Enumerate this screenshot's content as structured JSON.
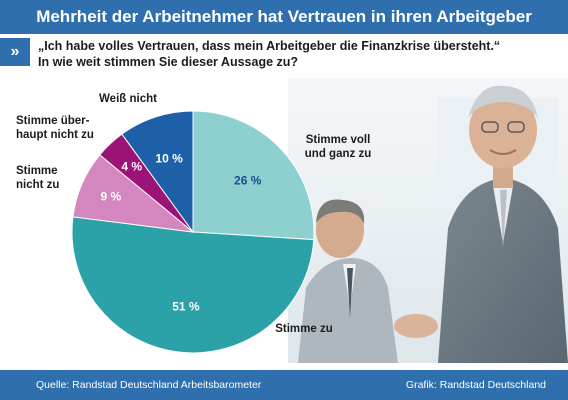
{
  "header": {
    "title": "Mehrheit der Arbeitnehmer hat Vertrauen in ihren Arbeitgeber"
  },
  "question": {
    "marker": "»",
    "line1": "„Ich habe volles Vertrauen, dass mein Arbeitgeber die Finanzkrise übersteht.“",
    "line2": "In wie weit stimmen Sie dieser Aussage zu?"
  },
  "footer": {
    "source": "Quelle: Randstad Deutschland Arbeitsbarometer",
    "credit": "Grafik: Randstad Deutschland"
  },
  "chart_data": {
    "type": "pie",
    "slices": [
      {
        "category": "Stimme voll und ganz zu",
        "value": 26,
        "label": "26 %",
        "color": "#8ecfcf",
        "label_color": "#1a4f8a"
      },
      {
        "category": "Stimme zu",
        "value": 51,
        "label": "51 %",
        "color": "#2aa2a8",
        "label_color": "#ffffff"
      },
      {
        "category": "Stimme nicht zu",
        "value": 9,
        "label": "9 %",
        "color": "#d486bf",
        "label_color": "#ffffff"
      },
      {
        "category": "Stimme überhaupt nicht zu",
        "value": 4,
        "label": "4 %",
        "color": "#9c1378",
        "label_color": "#ffffff"
      },
      {
        "category": "Weiß nicht",
        "value": 10,
        "label": "10 %",
        "color": "#1e60a8",
        "label_color": "#ffffff"
      }
    ],
    "category_labels": [
      {
        "lines": [
          "Stimme voll",
          "und ganz zu"
        ]
      },
      {
        "lines": [
          "Stimme zu"
        ]
      },
      {
        "lines": [
          "Stimme",
          "nicht zu"
        ]
      },
      {
        "lines": [
          "Stimme über-",
          "haupt nicht zu"
        ]
      },
      {
        "lines": [
          "Weiß nicht"
        ]
      }
    ],
    "start_angle_deg": 0,
    "direction": "clockwise",
    "legend": "none"
  },
  "colors": {
    "brand_blue": "#2f6fae"
  }
}
